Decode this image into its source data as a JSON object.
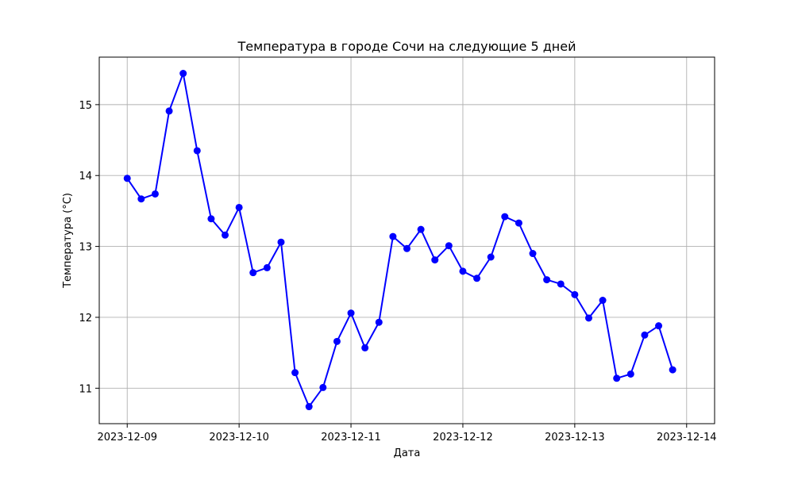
{
  "chart_data": {
    "type": "line",
    "title": "Температура в городе Сочи на следующие 5 дней",
    "xlabel": "Дата",
    "ylabel": "Температура (°C)",
    "x_axis_type": "date",
    "xlim": [
      "2023-12-08 18:00",
      "2023-12-14 06:00"
    ],
    "ylim": [
      10.5,
      15.67
    ],
    "x_ticks": [
      "2023-12-09",
      "2023-12-10",
      "2023-12-11",
      "2023-12-12",
      "2023-12-13",
      "2023-12-14"
    ],
    "y_ticks": [
      11,
      12,
      13,
      14,
      15
    ],
    "grid": true,
    "legend": "none",
    "series": [
      {
        "color": "#0000ff",
        "marker": "circle",
        "x": [
          "2023-12-09 00:00",
          "2023-12-09 03:00",
          "2023-12-09 06:00",
          "2023-12-09 09:00",
          "2023-12-09 12:00",
          "2023-12-09 15:00",
          "2023-12-09 18:00",
          "2023-12-09 21:00",
          "2023-12-10 00:00",
          "2023-12-10 03:00",
          "2023-12-10 06:00",
          "2023-12-10 09:00",
          "2023-12-10 12:00",
          "2023-12-10 15:00",
          "2023-12-10 18:00",
          "2023-12-10 21:00",
          "2023-12-11 00:00",
          "2023-12-11 03:00",
          "2023-12-11 06:00",
          "2023-12-11 09:00",
          "2023-12-11 12:00",
          "2023-12-11 15:00",
          "2023-12-11 18:00",
          "2023-12-11 21:00",
          "2023-12-12 00:00",
          "2023-12-12 03:00",
          "2023-12-12 06:00",
          "2023-12-12 09:00",
          "2023-12-12 12:00",
          "2023-12-12 15:00",
          "2023-12-12 18:00",
          "2023-12-12 21:00",
          "2023-12-13 00:00",
          "2023-12-13 03:00",
          "2023-12-13 06:00",
          "2023-12-13 09:00",
          "2023-12-13 12:00",
          "2023-12-13 15:00",
          "2023-12-13 18:00",
          "2023-12-13 21:00"
        ],
        "y": [
          13.96,
          13.67,
          13.74,
          14.91,
          15.44,
          14.35,
          13.39,
          13.16,
          13.55,
          12.63,
          12.7,
          13.06,
          11.22,
          10.74,
          11.01,
          11.66,
          12.06,
          11.57,
          11.93,
          13.14,
          12.97,
          13.24,
          12.81,
          13.01,
          12.65,
          12.55,
          12.85,
          13.42,
          13.33,
          12.9,
          12.53,
          12.47,
          12.32,
          11.99,
          12.24,
          11.14,
          11.2,
          11.75,
          11.88,
          11.26
        ]
      }
    ]
  }
}
